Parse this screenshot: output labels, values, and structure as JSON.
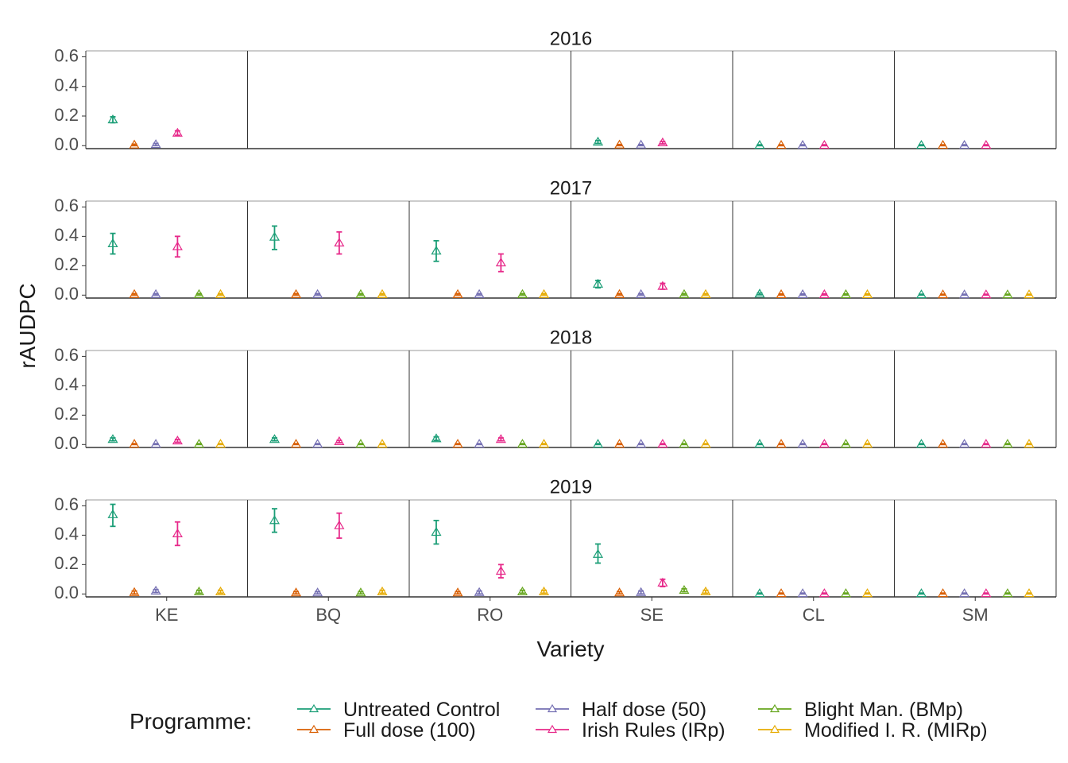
{
  "chart_data": {
    "type": "scatter",
    "xlabel": "Variety",
    "ylabel": "rAUDPC",
    "ylim": [
      -0.02,
      0.64
    ],
    "yticks": [
      "0.0",
      "0.2",
      "0.4",
      "0.6"
    ],
    "ytick_values": [
      0,
      0.2,
      0.4,
      0.6
    ],
    "varieties": [
      "KE",
      "BQ",
      "RO",
      "SE",
      "CL",
      "SM"
    ],
    "legend": {
      "title": "Programme:",
      "position": "bottom"
    },
    "programmes": [
      {
        "name": "Untreated Control",
        "color": "#1b9e77"
      },
      {
        "name": "Full dose (100)",
        "color": "#d95f02"
      },
      {
        "name": "Half dose (50)",
        "color": "#7570b3"
      },
      {
        "name": "Irish Rules (IRp)",
        "color": "#e7298a"
      },
      {
        "name": "Blight Man. (BMp)",
        "color": "#66a61e"
      },
      {
        "name": "Modified I. R. (MIRp)",
        "color": "#e6ab02"
      }
    ],
    "facets": [
      {
        "year": "2016",
        "panels": [
          {
            "variety": "KE",
            "span": 1,
            "progs": [
              0,
              1,
              2,
              3
            ],
            "mean": [
              0.175,
              0.005,
              0.008,
              0.085
            ],
            "lo": [
              0.155,
              0.0,
              0.0,
              0.07
            ],
            "hi": [
              0.195,
              0.01,
              0.015,
              0.1
            ]
          },
          {
            "variety": "BQ-RO",
            "span": 2,
            "progs": [],
            "mean": [],
            "lo": [],
            "hi": []
          },
          {
            "variety": "SE",
            "span": 1,
            "progs": [
              0,
              1,
              2,
              3
            ],
            "mean": [
              0.025,
              0.005,
              0.005,
              0.02
            ],
            "lo": [
              0.015,
              0.0,
              0.0,
              0.012
            ],
            "hi": [
              0.035,
              0.008,
              0.008,
              0.028
            ]
          },
          {
            "variety": "CL",
            "span": 1,
            "progs": [
              0,
              1,
              2,
              3
            ],
            "mean": [
              0.003,
              0.003,
              0.003,
              0.003
            ],
            "lo": [
              0.0,
              0.0,
              0.0,
              0.0
            ],
            "hi": [
              0.006,
              0.006,
              0.006,
              0.006
            ]
          },
          {
            "variety": "SM",
            "span": 1,
            "progs": [
              0,
              1,
              2,
              3
            ],
            "mean": [
              0.003,
              0.003,
              0.003,
              0.003
            ],
            "lo": [
              0.0,
              0.0,
              0.0,
              0.0
            ],
            "hi": [
              0.006,
              0.006,
              0.006,
              0.006
            ]
          }
        ]
      },
      {
        "year": "2017",
        "panels": [
          {
            "variety": "KE",
            "span": 1,
            "progs": [
              0,
              1,
              2,
              3,
              4,
              5
            ],
            "mean": [
              0.35,
              0.005,
              0.005,
              0.33,
              0.005,
              0.005
            ],
            "lo": [
              0.28,
              0.0,
              0.0,
              0.26,
              0.0,
              0.0
            ],
            "hi": [
              0.42,
              0.01,
              0.01,
              0.4,
              0.01,
              0.01
            ]
          },
          {
            "variety": "BQ",
            "span": 1,
            "progs": [
              0,
              1,
              2,
              3,
              4,
              5
            ],
            "mean": [
              0.395,
              0.005,
              0.005,
              0.355,
              0.005,
              0.005
            ],
            "lo": [
              0.31,
              0.0,
              0.0,
              0.28,
              0.0,
              0.0
            ],
            "hi": [
              0.47,
              0.01,
              0.01,
              0.43,
              0.01,
              0.01
            ]
          },
          {
            "variety": "RO",
            "span": 1,
            "progs": [
              0,
              1,
              2,
              3,
              4,
              5
            ],
            "mean": [
              0.3,
              0.005,
              0.005,
              0.22,
              0.005,
              0.005
            ],
            "lo": [
              0.23,
              0.0,
              0.0,
              0.16,
              0.0,
              0.0
            ],
            "hi": [
              0.37,
              0.01,
              0.01,
              0.28,
              0.01,
              0.01
            ]
          },
          {
            "variety": "SE",
            "span": 1,
            "progs": [
              0,
              1,
              2,
              3,
              4,
              5
            ],
            "mean": [
              0.075,
              0.005,
              0.005,
              0.06,
              0.005,
              0.005
            ],
            "lo": [
              0.05,
              0.0,
              0.0,
              0.04,
              0.0,
              0.0
            ],
            "hi": [
              0.1,
              0.01,
              0.01,
              0.08,
              0.01,
              0.01
            ]
          },
          {
            "variety": "CL",
            "span": 1,
            "progs": [
              0,
              1,
              2,
              3,
              4,
              5
            ],
            "mean": [
              0.008,
              0.004,
              0.004,
              0.004,
              0.004,
              0.004
            ],
            "lo": [
              0.002,
              0.0,
              0.0,
              0.0,
              0.0,
              0.0
            ],
            "hi": [
              0.014,
              0.008,
              0.008,
              0.008,
              0.008,
              0.008
            ]
          },
          {
            "variety": "SM",
            "span": 1,
            "progs": [
              0,
              1,
              2,
              3,
              4,
              5
            ],
            "mean": [
              0.003,
              0.003,
              0.003,
              0.003,
              0.003,
              0.003
            ],
            "lo": [
              0.0,
              0.0,
              0.0,
              0.0,
              0.0,
              0.0
            ],
            "hi": [
              0.006,
              0.006,
              0.006,
              0.006,
              0.006,
              0.006
            ]
          }
        ]
      },
      {
        "year": "2018",
        "panels": [
          {
            "variety": "KE",
            "span": 1,
            "progs": [
              0,
              1,
              2,
              3,
              4,
              5
            ],
            "mean": [
              0.035,
              0.003,
              0.003,
              0.025,
              0.003,
              0.003
            ],
            "lo": [
              0.025,
              0.0,
              0.0,
              0.015,
              0.0,
              0.0
            ],
            "hi": [
              0.045,
              0.006,
              0.006,
              0.035,
              0.006,
              0.006
            ]
          },
          {
            "variety": "BQ",
            "span": 1,
            "progs": [
              0,
              1,
              2,
              3,
              4,
              5
            ],
            "mean": [
              0.035,
              0.003,
              0.003,
              0.02,
              0.003,
              0.003
            ],
            "lo": [
              0.025,
              0.0,
              0.0,
              0.012,
              0.0,
              0.0
            ],
            "hi": [
              0.045,
              0.006,
              0.006,
              0.028,
              0.006,
              0.006
            ]
          },
          {
            "variety": "RO",
            "span": 1,
            "progs": [
              0,
              1,
              2,
              3,
              4,
              5
            ],
            "mean": [
              0.04,
              0.003,
              0.003,
              0.035,
              0.003,
              0.003
            ],
            "lo": [
              0.028,
              0.0,
              0.0,
              0.025,
              0.0,
              0.0
            ],
            "hi": [
              0.052,
              0.006,
              0.006,
              0.045,
              0.006,
              0.006
            ]
          },
          {
            "variety": "SE",
            "span": 1,
            "progs": [
              0,
              1,
              2,
              3,
              4,
              5
            ],
            "mean": [
              0.003,
              0.003,
              0.003,
              0.003,
              0.003,
              0.003
            ],
            "lo": [
              0.0,
              0.0,
              0.0,
              0.0,
              0.0,
              0.0
            ],
            "hi": [
              0.006,
              0.006,
              0.006,
              0.006,
              0.006,
              0.006
            ]
          },
          {
            "variety": "CL",
            "span": 1,
            "progs": [
              0,
              1,
              2,
              3,
              4,
              5
            ],
            "mean": [
              0.003,
              0.003,
              0.003,
              0.003,
              0.003,
              0.003
            ],
            "lo": [
              0.0,
              0.0,
              0.0,
              0.0,
              0.0,
              0.0
            ],
            "hi": [
              0.006,
              0.006,
              0.006,
              0.006,
              0.006,
              0.006
            ]
          },
          {
            "variety": "SM",
            "span": 1,
            "progs": [
              0,
              1,
              2,
              3,
              4,
              5
            ],
            "mean": [
              0.003,
              0.003,
              0.003,
              0.003,
              0.003,
              0.003
            ],
            "lo": [
              0.0,
              0.0,
              0.0,
              0.0,
              0.0,
              0.0
            ],
            "hi": [
              0.006,
              0.006,
              0.006,
              0.006,
              0.006,
              0.006
            ]
          }
        ]
      },
      {
        "year": "2019",
        "panels": [
          {
            "variety": "KE",
            "span": 1,
            "progs": [
              0,
              1,
              2,
              3,
              4,
              5
            ],
            "mean": [
              0.54,
              0.01,
              0.02,
              0.41,
              0.015,
              0.015
            ],
            "lo": [
              0.46,
              0.0,
              0.01,
              0.33,
              0.005,
              0.005
            ],
            "hi": [
              0.61,
              0.02,
              0.03,
              0.49,
              0.025,
              0.025
            ]
          },
          {
            "variety": "BQ",
            "span": 1,
            "progs": [
              0,
              1,
              2,
              3,
              4,
              5
            ],
            "mean": [
              0.5,
              0.008,
              0.008,
              0.465,
              0.008,
              0.015
            ],
            "lo": [
              0.42,
              0.0,
              0.0,
              0.38,
              0.0,
              0.005
            ],
            "hi": [
              0.58,
              0.016,
              0.016,
              0.55,
              0.016,
              0.025
            ]
          },
          {
            "variety": "RO",
            "span": 1,
            "progs": [
              0,
              1,
              2,
              3,
              4,
              5
            ],
            "mean": [
              0.42,
              0.008,
              0.01,
              0.155,
              0.015,
              0.015
            ],
            "lo": [
              0.34,
              0.0,
              0.0,
              0.11,
              0.005,
              0.005
            ],
            "hi": [
              0.5,
              0.016,
              0.02,
              0.2,
              0.025,
              0.025
            ]
          },
          {
            "variety": "SE",
            "span": 1,
            "progs": [
              0,
              1,
              2,
              3,
              4,
              5
            ],
            "mean": [
              0.27,
              0.008,
              0.01,
              0.075,
              0.025,
              0.015
            ],
            "lo": [
              0.21,
              0.0,
              0.0,
              0.05,
              0.015,
              0.005
            ],
            "hi": [
              0.34,
              0.016,
              0.02,
              0.1,
              0.035,
              0.025
            ]
          },
          {
            "variety": "CL",
            "span": 1,
            "progs": [
              0,
              1,
              2,
              3,
              4,
              5
            ],
            "mean": [
              0.003,
              0.003,
              0.003,
              0.003,
              0.003,
              0.003
            ],
            "lo": [
              0.0,
              0.0,
              0.0,
              0.0,
              0.0,
              0.0
            ],
            "hi": [
              0.006,
              0.006,
              0.006,
              0.006,
              0.006,
              0.006
            ]
          },
          {
            "variety": "SM",
            "span": 1,
            "progs": [
              0,
              1,
              2,
              3,
              4,
              5
            ],
            "mean": [
              0.003,
              0.003,
              0.003,
              0.003,
              0.003,
              0.003
            ],
            "lo": [
              0.0,
              0.0,
              0.0,
              0.0,
              0.0,
              0.0
            ],
            "hi": [
              0.006,
              0.006,
              0.006,
              0.006,
              0.006,
              0.006
            ]
          }
        ]
      }
    ]
  }
}
